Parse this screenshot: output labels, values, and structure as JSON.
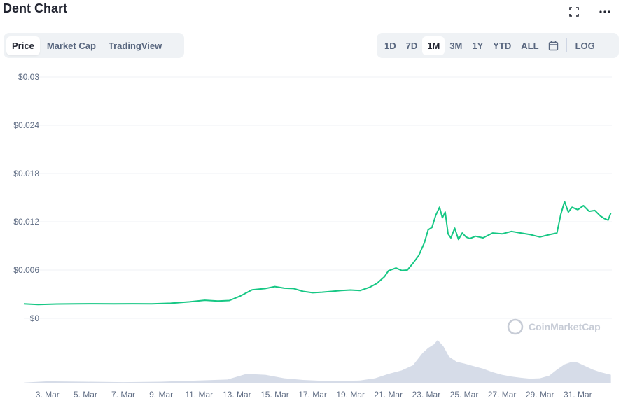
{
  "title": "Dent Chart",
  "header_icons": [
    "fullscreen-icon",
    "more-icon"
  ],
  "tabs": [
    {
      "label": "Price",
      "active": true
    },
    {
      "label": "Market Cap",
      "active": false
    },
    {
      "label": "TradingView",
      "active": false
    }
  ],
  "ranges": [
    {
      "label": "1D",
      "active": false
    },
    {
      "label": "7D",
      "active": false
    },
    {
      "label": "1M",
      "active": true
    },
    {
      "label": "3M",
      "active": false
    },
    {
      "label": "1Y",
      "active": false
    },
    {
      "label": "YTD",
      "active": false
    },
    {
      "label": "ALL",
      "active": false
    }
  ],
  "calendar_icon": "calendar-icon",
  "log_label": "LOG",
  "watermark": "CoinMarketCap",
  "colors": {
    "line": "#16c784",
    "volume": "#cfd6e4",
    "grid": "#eff2f5"
  },
  "chart_data": {
    "type": "line",
    "title": "Dent Chart",
    "xlabel": "",
    "ylabel": "",
    "ylim": [
      0,
      0.03
    ],
    "yticks": [
      {
        "value": 0,
        "label": "$0"
      },
      {
        "value": 0.006,
        "label": "$0.006"
      },
      {
        "value": 0.012,
        "label": "$0.012"
      },
      {
        "value": 0.018,
        "label": "$0.018"
      },
      {
        "value": 0.024,
        "label": "$0.024"
      },
      {
        "value": 0.03,
        "label": "$0.03"
      }
    ],
    "xlim": [
      1.75,
      32.8
    ],
    "xticks": [
      {
        "value": 3,
        "label": "3. Mar"
      },
      {
        "value": 5,
        "label": "5. Mar"
      },
      {
        "value": 7,
        "label": "7. Mar"
      },
      {
        "value": 9,
        "label": "9. Mar"
      },
      {
        "value": 11,
        "label": "11. Mar"
      },
      {
        "value": 13,
        "label": "13. Mar"
      },
      {
        "value": 15,
        "label": "15. Mar"
      },
      {
        "value": 17,
        "label": "17. Mar"
      },
      {
        "value": 19,
        "label": "19. Mar"
      },
      {
        "value": 21,
        "label": "21. Mar"
      },
      {
        "value": 23,
        "label": "23. Mar"
      },
      {
        "value": 25,
        "label": "25. Mar"
      },
      {
        "value": 27,
        "label": "27. Mar"
      },
      {
        "value": 29,
        "label": "29. Mar"
      },
      {
        "value": 31,
        "label": "31. Mar"
      }
    ],
    "grid": true,
    "legend": "none",
    "series": [
      {
        "x": [
          1.75,
          2.5,
          3.5,
          4.5,
          5.5,
          6.5,
          7.5,
          8.5,
          9.5,
          10.5,
          11.3,
          12.0,
          12.6,
          13.2,
          13.8,
          14.5,
          15.0,
          15.5,
          16.0,
          16.5,
          17.0,
          17.5,
          18.0,
          18.5,
          19.0,
          19.5,
          20.0,
          20.4,
          20.8,
          21.0,
          21.4,
          21.7,
          22.0,
          22.3,
          22.6,
          22.9,
          23.1,
          23.3,
          23.5,
          23.7,
          23.85,
          24.0,
          24.15,
          24.3,
          24.5,
          24.7,
          24.9,
          25.1,
          25.3,
          25.6,
          26.0,
          26.5,
          27.0,
          27.5,
          28.0,
          28.5,
          29.0,
          29.5,
          29.9,
          30.1,
          30.3,
          30.5,
          30.7,
          31.0,
          31.3,
          31.6,
          31.9,
          32.2,
          32.4,
          32.6,
          32.75
        ],
        "y": [
          0.0018,
          0.00172,
          0.00178,
          0.0018,
          0.00182,
          0.0018,
          0.00182,
          0.0018,
          0.00188,
          0.00205,
          0.00225,
          0.00215,
          0.00222,
          0.0028,
          0.00355,
          0.0037,
          0.00395,
          0.00375,
          0.0037,
          0.00335,
          0.00318,
          0.00325,
          0.00335,
          0.00345,
          0.00352,
          0.00345,
          0.00385,
          0.00435,
          0.0052,
          0.0059,
          0.00625,
          0.00595,
          0.006,
          0.00685,
          0.0078,
          0.0094,
          0.011,
          0.0113,
          0.0128,
          0.0138,
          0.0125,
          0.0132,
          0.0105,
          0.01,
          0.0112,
          0.0098,
          0.0106,
          0.0101,
          0.0099,
          0.0102,
          0.01,
          0.0106,
          0.0105,
          0.0108,
          0.0106,
          0.0104,
          0.0101,
          0.0104,
          0.0106,
          0.0129,
          0.0145,
          0.0132,
          0.0138,
          0.0135,
          0.014,
          0.0133,
          0.0134,
          0.0127,
          0.0124,
          0.0122,
          0.0131
        ]
      }
    ],
    "volume": {
      "x": [
        1.75,
        3.0,
        5.0,
        7.0,
        9.0,
        11.0,
        12.5,
        13.5,
        14.5,
        15.5,
        16.5,
        17.5,
        18.5,
        19.5,
        20.3,
        21.0,
        21.7,
        22.3,
        22.8,
        23.1,
        23.4,
        23.6,
        23.9,
        24.2,
        24.6,
        25.0,
        25.5,
        26.0,
        26.5,
        27.0,
        27.5,
        28.0,
        28.5,
        29.0,
        29.5,
        29.9,
        30.3,
        30.7,
        31.0,
        31.4,
        31.8,
        32.2,
        32.75
      ],
      "y": [
        0.02,
        0.05,
        0.04,
        0.03,
        0.04,
        0.07,
        0.09,
        0.22,
        0.2,
        0.12,
        0.08,
        0.06,
        0.05,
        0.07,
        0.12,
        0.22,
        0.3,
        0.42,
        0.7,
        0.82,
        0.9,
        1.0,
        0.86,
        0.62,
        0.5,
        0.46,
        0.4,
        0.34,
        0.26,
        0.2,
        0.16,
        0.13,
        0.11,
        0.12,
        0.18,
        0.32,
        0.44,
        0.5,
        0.48,
        0.4,
        0.32,
        0.26,
        0.2
      ]
    }
  }
}
